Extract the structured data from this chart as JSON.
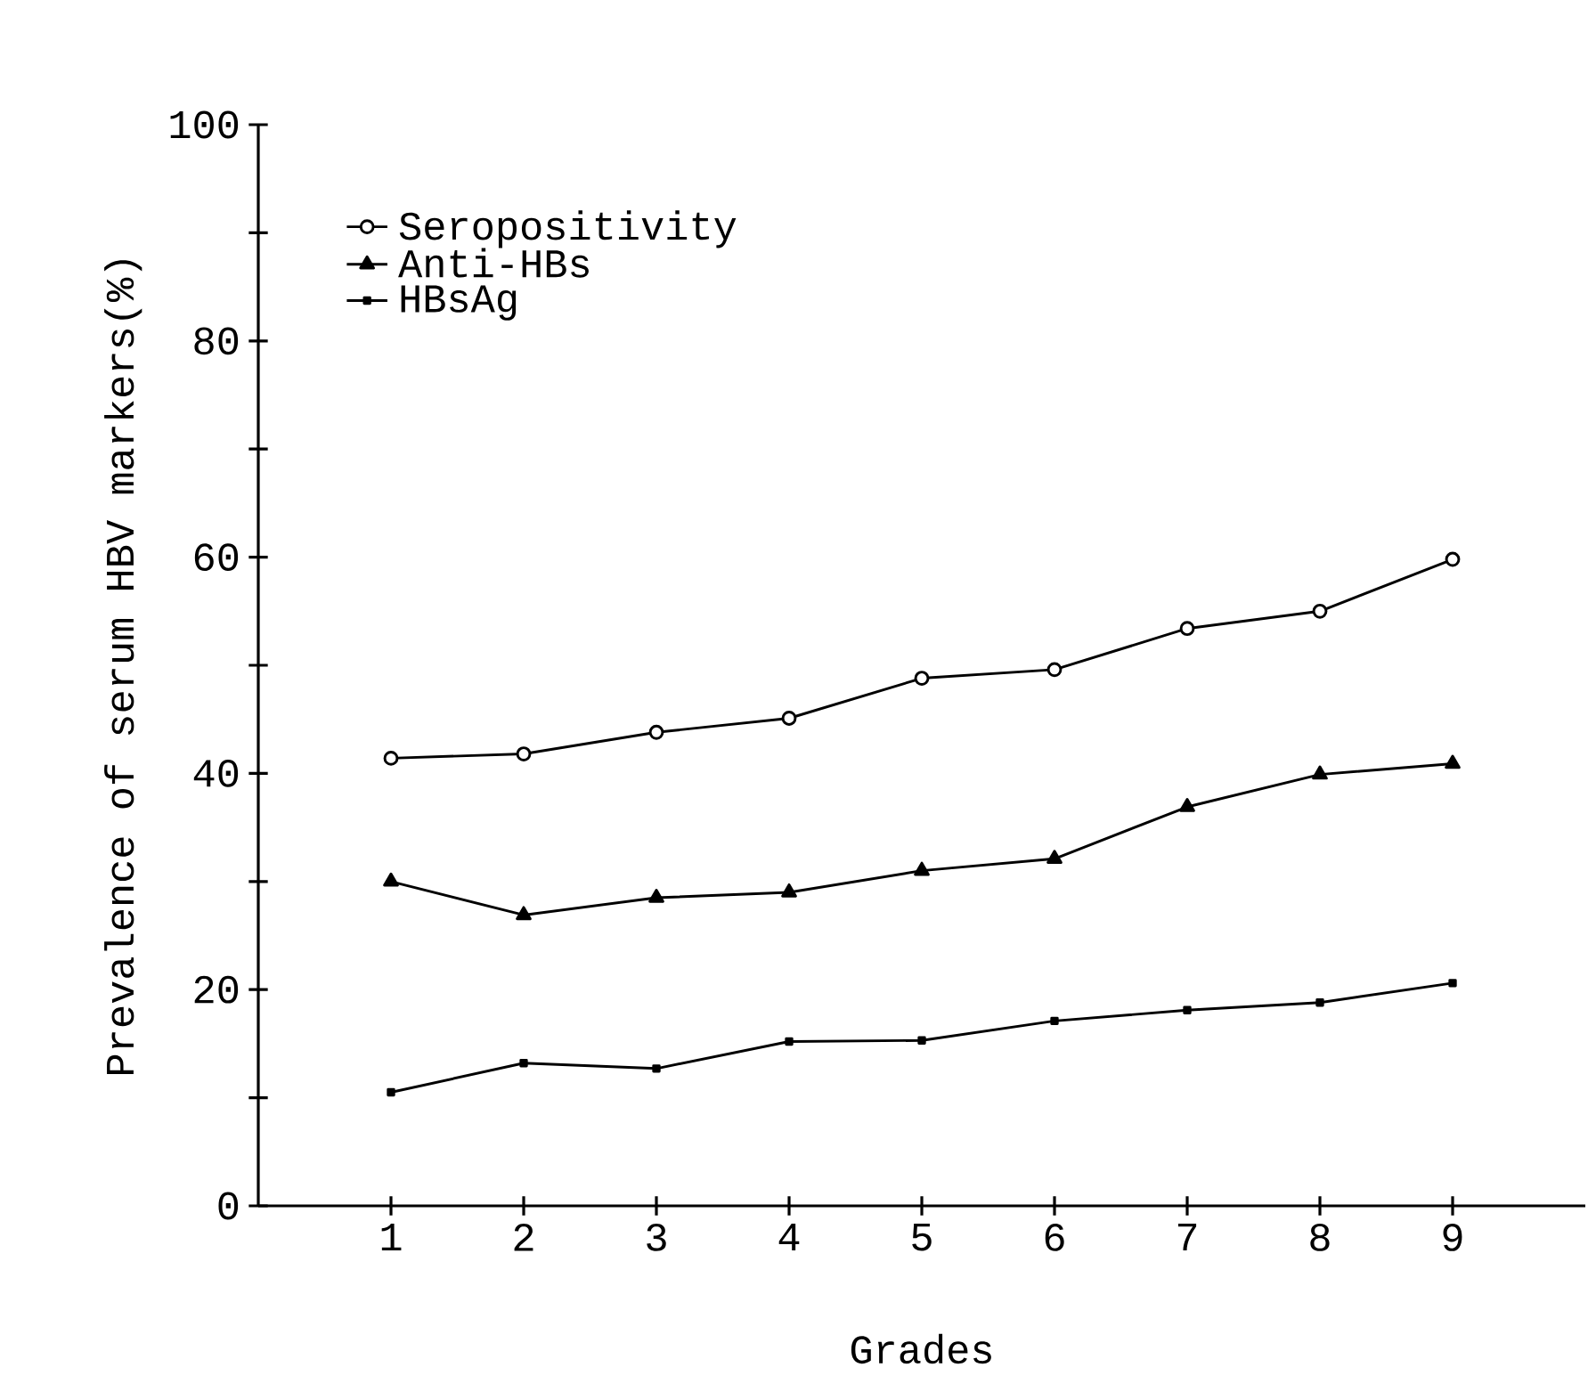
{
  "chart_data": {
    "type": "line",
    "xlabel": "Grades",
    "ylabel": "Prevalence of serum HBV markers(%)",
    "x": [
      1,
      2,
      3,
      4,
      5,
      6,
      7,
      8,
      9
    ],
    "xlim": [
      0,
      10
    ],
    "xticks": [
      1,
      2,
      3,
      4,
      5,
      6,
      7,
      8,
      9
    ],
    "ylim": [
      0,
      100
    ],
    "yticks": [
      0,
      {
        "value": 10,
        "label": null
      },
      20,
      {
        "value": 30,
        "label": null
      },
      40,
      {
        "value": 50,
        "label": null
      },
      60,
      {
        "value": 70,
        "label": null
      },
      80,
      {
        "value": 90,
        "label": null
      },
      100
    ],
    "grid": false,
    "legend": "top left",
    "line_style": "solid",
    "series": [
      {
        "name": "Seropositivity",
        "color": "#000000",
        "marker": "circle",
        "values": [
          41.4,
          41.8,
          43.8,
          45.1,
          48.8,
          49.6,
          53.4,
          55.0,
          59.8
        ]
      },
      {
        "name": "Anti-HBs",
        "color": "#000000",
        "marker": "triangle",
        "values": [
          30.0,
          26.9,
          28.5,
          29.0,
          31.0,
          32.1,
          36.9,
          39.9,
          40.9
        ]
      },
      {
        "name": "HBsAg",
        "color": "#000000",
        "marker": "square",
        "values": [
          10.5,
          13.2,
          12.7,
          15.2,
          15.3,
          17.1,
          18.1,
          18.8,
          20.6
        ]
      }
    ]
  }
}
